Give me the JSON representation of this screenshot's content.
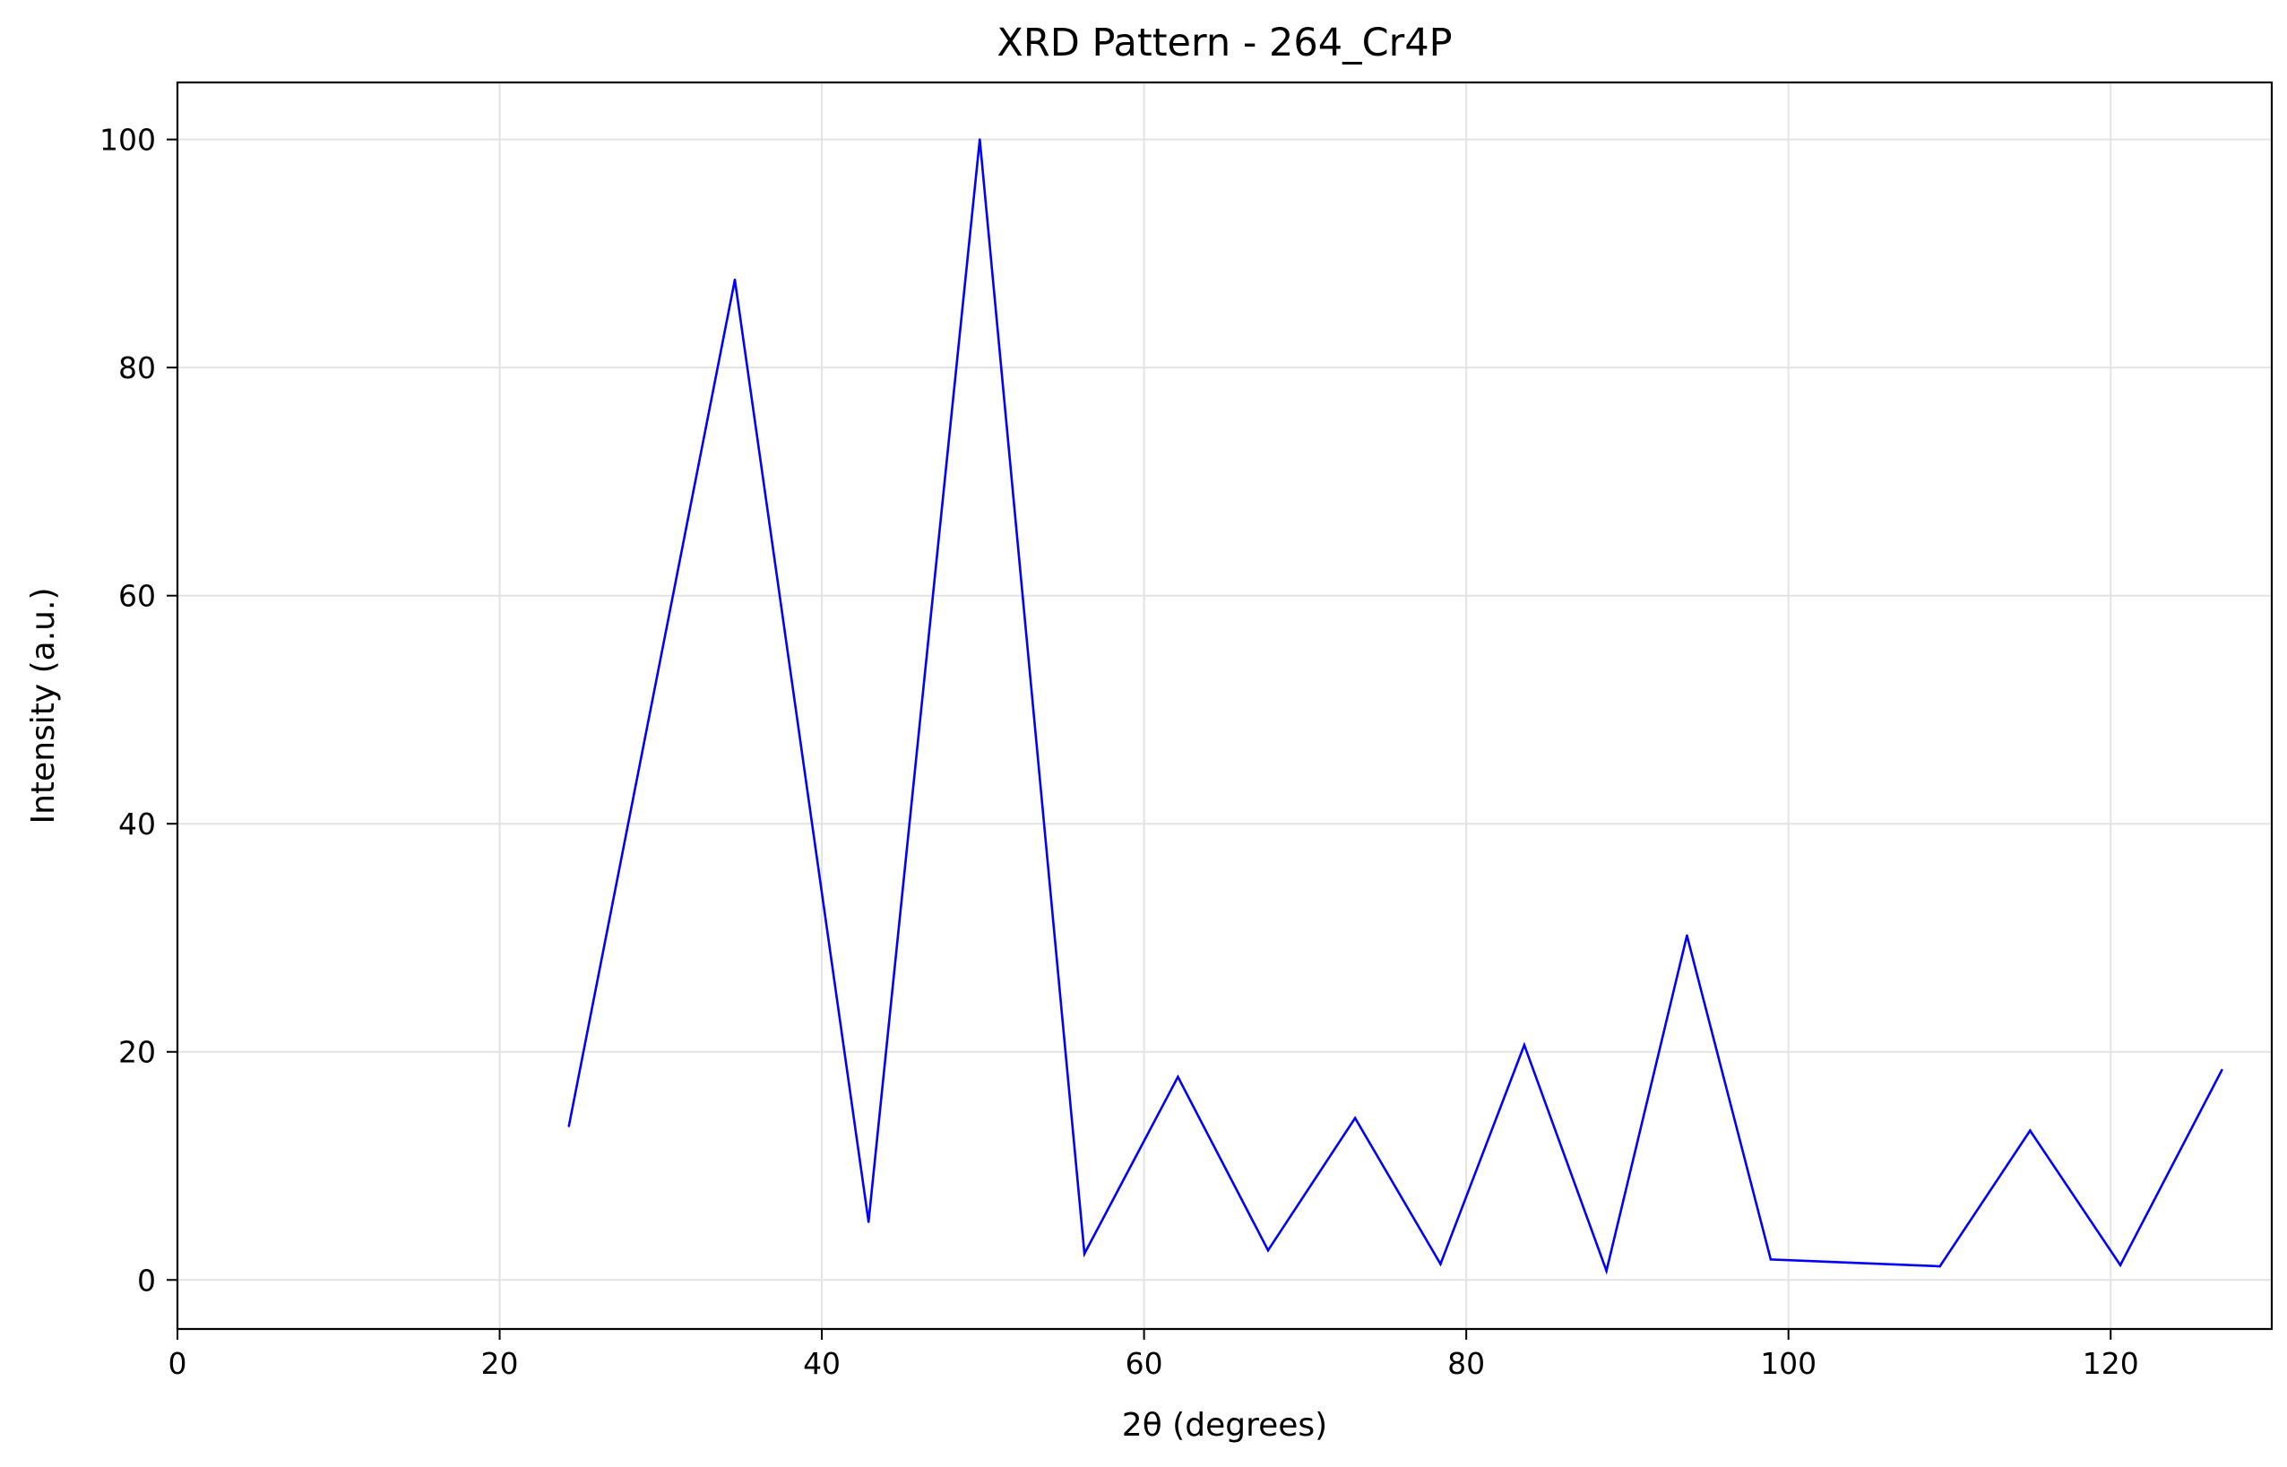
{
  "chart_data": {
    "type": "line",
    "title": "XRD Pattern - 264_Cr4P",
    "xlabel": "2θ (degrees)",
    "ylabel": "Intensity (a.u.)",
    "xlim": [
      0,
      130
    ],
    "ylim": [
      -4.3,
      105
    ],
    "xticks": [
      0,
      20,
      40,
      60,
      80,
      100,
      120
    ],
    "yticks": [
      0,
      20,
      40,
      60,
      80,
      100
    ],
    "grid": true,
    "line_color": "#0000ff",
    "series": [
      {
        "x": [
          24.3,
          34.6,
          42.9,
          49.8,
          56.3,
          62.1,
          67.7,
          73.1,
          78.4,
          83.6,
          88.7,
          93.7,
          98.9,
          109.4,
          115.0,
          120.6,
          126.9
        ],
        "values": [
          13.5,
          87.7,
          5.1,
          100.0,
          2.3,
          17.8,
          2.6,
          14.2,
          1.4,
          20.6,
          0.8,
          30.2,
          1.8,
          1.2,
          13.1,
          1.3,
          18.4
        ]
      }
    ]
  }
}
